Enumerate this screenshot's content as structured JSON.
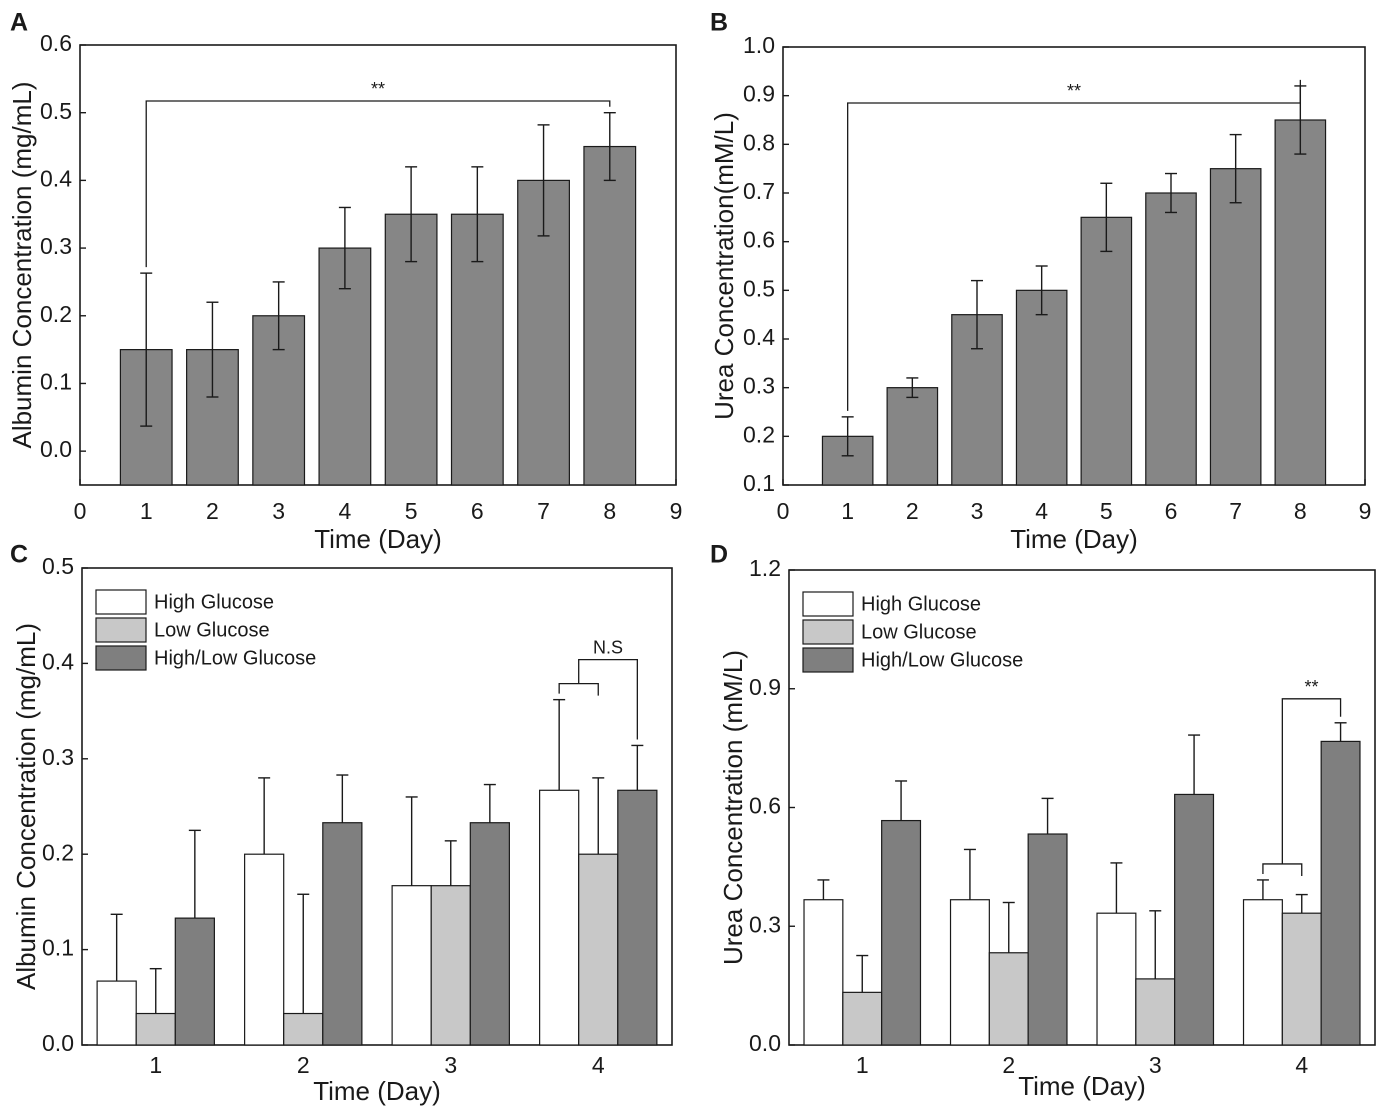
{
  "chart_data": [
    {
      "panel": "A",
      "type": "bar",
      "xlabel": "Time (Day)",
      "ylabel": "Albumin Concentration (mg/mL)",
      "xlim": [
        0,
        9
      ],
      "ylim": [
        -0.05,
        0.6
      ],
      "xticks": [
        0,
        1,
        2,
        3,
        4,
        5,
        6,
        7,
        8,
        9
      ],
      "yticks": [
        "0.0",
        "0.1",
        "0.2",
        "0.3",
        "0.4",
        "0.5",
        "0.6"
      ],
      "x": [
        1,
        2,
        3,
        4,
        5,
        6,
        7,
        8
      ],
      "values": [
        0.15,
        0.15,
        0.2,
        0.3,
        0.35,
        0.35,
        0.4,
        0.45
      ],
      "errors": [
        0.113,
        0.07,
        0.05,
        0.06,
        0.07,
        0.07,
        0.082,
        0.05
      ],
      "bar_color": "#868686",
      "significance": {
        "from": 1,
        "to": 8,
        "label": "**"
      }
    },
    {
      "panel": "B",
      "type": "bar",
      "xlabel": "Time (Day)",
      "ylabel": "Urea Concentration(mM/L)",
      "xlim": [
        0,
        9
      ],
      "ylim": [
        0.1,
        1.0
      ],
      "xticks": [
        0,
        1,
        2,
        3,
        4,
        5,
        6,
        7,
        8,
        9
      ],
      "yticks": [
        "0.1",
        "0.2",
        "0.3",
        "0.4",
        "0.5",
        "0.6",
        "0.7",
        "0.8",
        "0.9",
        "1.0"
      ],
      "x": [
        1,
        2,
        3,
        4,
        5,
        6,
        7,
        8
      ],
      "values": [
        0.2,
        0.3,
        0.45,
        0.5,
        0.65,
        0.7,
        0.75,
        0.85
      ],
      "errors": [
        0.04,
        0.02,
        0.07,
        0.05,
        0.07,
        0.04,
        0.07,
        0.07
      ],
      "bar_color": "#868686",
      "significance": {
        "from": 1,
        "to": 8,
        "label": "**"
      }
    },
    {
      "panel": "C",
      "type": "bar",
      "xlabel": "Time (Day)",
      "ylabel": "Albumin Concentration (mg/mL)",
      "ylim": [
        0,
        0.5
      ],
      "yticks": [
        "0.0",
        "0.1",
        "0.2",
        "0.3",
        "0.4",
        "0.5"
      ],
      "categories": [
        "1",
        "2",
        "3",
        "4"
      ],
      "series": [
        {
          "name": "High Glucose",
          "color": "#ffffff",
          "values": [
            0.067,
            0.2,
            0.167,
            0.267
          ],
          "errors": [
            0.07,
            0.08,
            0.093,
            0.095
          ]
        },
        {
          "name": "Low Glucose",
          "color": "#c8c8c8",
          "values": [
            0.033,
            0.033,
            0.167,
            0.2
          ],
          "errors": [
            0.047,
            0.125,
            0.047,
            0.08
          ]
        },
        {
          "name": "High/Low Glucose",
          "color": "#7f7f7f",
          "values": [
            0.133,
            0.233,
            0.233,
            0.267
          ],
          "errors": [
            0.092,
            0.05,
            0.04,
            0.047
          ]
        }
      ],
      "significance": {
        "category": "4",
        "label": "N.S"
      }
    },
    {
      "panel": "D",
      "type": "bar",
      "xlabel": "Time (Day)",
      "ylabel": "Urea Concentration (mM/L)",
      "ylim": [
        0,
        1.2
      ],
      "yticks": [
        "0.0",
        "0.3",
        "0.6",
        "0.9",
        "1.2"
      ],
      "categories": [
        "1",
        "2",
        "3",
        "4"
      ],
      "series": [
        {
          "name": "High Glucose",
          "color": "#ffffff",
          "values": [
            0.367,
            0.367,
            0.333,
            0.367
          ],
          "errors": [
            0.05,
            0.127,
            0.127,
            0.05
          ]
        },
        {
          "name": "Low Glucose",
          "color": "#c8c8c8",
          "values": [
            0.133,
            0.233,
            0.167,
            0.333
          ],
          "errors": [
            0.093,
            0.127,
            0.172,
            0.047
          ]
        },
        {
          "name": "High/Low Glucose",
          "color": "#7f7f7f",
          "values": [
            0.567,
            0.533,
            0.633,
            0.767
          ],
          "errors": [
            0.1,
            0.09,
            0.15,
            0.047
          ]
        }
      ],
      "significance": {
        "category": "4",
        "label": "**"
      }
    }
  ]
}
